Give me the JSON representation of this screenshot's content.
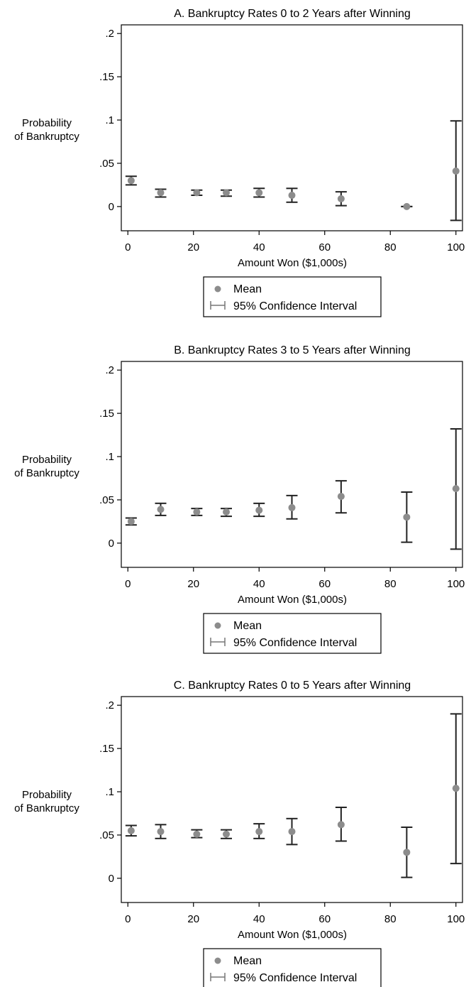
{
  "chart_data": [
    {
      "type": "scatter",
      "title": "A. Bankruptcy Rates 0 to 2 Years after Winning",
      "xlabel": "Amount Won ($1,000s)",
      "ylabel_lines": [
        "Probability",
        "of Bankruptcy"
      ],
      "xlim": [
        -2,
        102
      ],
      "ylim": [
        -0.028,
        0.21
      ],
      "xticks": [
        0,
        20,
        40,
        60,
        80,
        100
      ],
      "xtick_labels": [
        "0",
        "20",
        "40",
        "60",
        "80",
        "100"
      ],
      "yticks": [
        0,
        0.05,
        0.1,
        0.15,
        0.2
      ],
      "ytick_labels": [
        "0",
        ".05",
        ".1",
        ".15",
        ".2"
      ],
      "grid": false,
      "legend_position": "bottom",
      "legend": [
        "Mean",
        "95% Confidence Interval"
      ],
      "points": [
        {
          "x": 1,
          "mean": 0.03,
          "lo": 0.025,
          "hi": 0.035
        },
        {
          "x": 10,
          "mean": 0.016,
          "lo": 0.011,
          "hi": 0.02
        },
        {
          "x": 21,
          "mean": 0.016,
          "lo": 0.013,
          "hi": 0.019
        },
        {
          "x": 30,
          "mean": 0.016,
          "lo": 0.012,
          "hi": 0.019
        },
        {
          "x": 40,
          "mean": 0.016,
          "lo": 0.011,
          "hi": 0.021
        },
        {
          "x": 50,
          "mean": 0.013,
          "lo": 0.005,
          "hi": 0.021
        },
        {
          "x": 65,
          "mean": 0.009,
          "lo": 0.001,
          "hi": 0.017
        },
        {
          "x": 85,
          "mean": 0.0,
          "lo": 0.0,
          "hi": 0.0
        },
        {
          "x": 100,
          "mean": 0.041,
          "lo": -0.016,
          "hi": 0.099
        }
      ]
    },
    {
      "type": "scatter",
      "title": "B. Bankruptcy Rates 3 to 5 Years after Winning",
      "xlabel": "Amount Won ($1,000s)",
      "ylabel_lines": [
        "Probability",
        "of Bankruptcy"
      ],
      "xlim": [
        -2,
        102
      ],
      "ylim": [
        -0.028,
        0.21
      ],
      "xticks": [
        0,
        20,
        40,
        60,
        80,
        100
      ],
      "xtick_labels": [
        "0",
        "20",
        "40",
        "60",
        "80",
        "100"
      ],
      "yticks": [
        0,
        0.05,
        0.1,
        0.15,
        0.2
      ],
      "ytick_labels": [
        "0",
        ".05",
        ".1",
        ".15",
        ".2"
      ],
      "grid": false,
      "legend_position": "bottom",
      "legend": [
        "Mean",
        "95% Confidence Interval"
      ],
      "points": [
        {
          "x": 1,
          "mean": 0.025,
          "lo": 0.021,
          "hi": 0.029
        },
        {
          "x": 10,
          "mean": 0.039,
          "lo": 0.032,
          "hi": 0.046
        },
        {
          "x": 21,
          "mean": 0.036,
          "lo": 0.032,
          "hi": 0.04
        },
        {
          "x": 30,
          "mean": 0.036,
          "lo": 0.031,
          "hi": 0.04
        },
        {
          "x": 40,
          "mean": 0.038,
          "lo": 0.031,
          "hi": 0.046
        },
        {
          "x": 50,
          "mean": 0.041,
          "lo": 0.028,
          "hi": 0.055
        },
        {
          "x": 65,
          "mean": 0.054,
          "lo": 0.035,
          "hi": 0.072
        },
        {
          "x": 85,
          "mean": 0.03,
          "lo": 0.001,
          "hi": 0.059
        },
        {
          "x": 100,
          "mean": 0.063,
          "lo": -0.007,
          "hi": 0.132
        }
      ]
    },
    {
      "type": "scatter",
      "title": "C. Bankruptcy Rates 0 to 5 Years after Winning",
      "xlabel": "Amount Won ($1,000s)",
      "ylabel_lines": [
        "Probability",
        "of Bankruptcy"
      ],
      "xlim": [
        -2,
        102
      ],
      "ylim": [
        -0.028,
        0.21
      ],
      "xticks": [
        0,
        20,
        40,
        60,
        80,
        100
      ],
      "xtick_labels": [
        "0",
        "20",
        "40",
        "60",
        "80",
        "100"
      ],
      "yticks": [
        0,
        0.05,
        0.1,
        0.15,
        0.2
      ],
      "ytick_labels": [
        "0",
        ".05",
        ".1",
        ".15",
        ".2"
      ],
      "grid": false,
      "legend_position": "bottom",
      "legend": [
        "Mean",
        "95% Confidence Interval"
      ],
      "points": [
        {
          "x": 1,
          "mean": 0.055,
          "lo": 0.049,
          "hi": 0.061
        },
        {
          "x": 10,
          "mean": 0.054,
          "lo": 0.046,
          "hi": 0.062
        },
        {
          "x": 21,
          "mean": 0.051,
          "lo": 0.047,
          "hi": 0.056
        },
        {
          "x": 30,
          "mean": 0.051,
          "lo": 0.046,
          "hi": 0.056
        },
        {
          "x": 40,
          "mean": 0.054,
          "lo": 0.046,
          "hi": 0.063
        },
        {
          "x": 50,
          "mean": 0.054,
          "lo": 0.039,
          "hi": 0.069
        },
        {
          "x": 65,
          "mean": 0.062,
          "lo": 0.043,
          "hi": 0.082
        },
        {
          "x": 85,
          "mean": 0.03,
          "lo": 0.001,
          "hi": 0.059
        },
        {
          "x": 100,
          "mean": 0.104,
          "lo": 0.017,
          "hi": 0.19
        }
      ]
    }
  ],
  "colors": {
    "mean_marker": "#8c8c8c",
    "ci_bar": "#222222",
    "axis": "#000000",
    "legend_ci_symbol": "#777777"
  }
}
